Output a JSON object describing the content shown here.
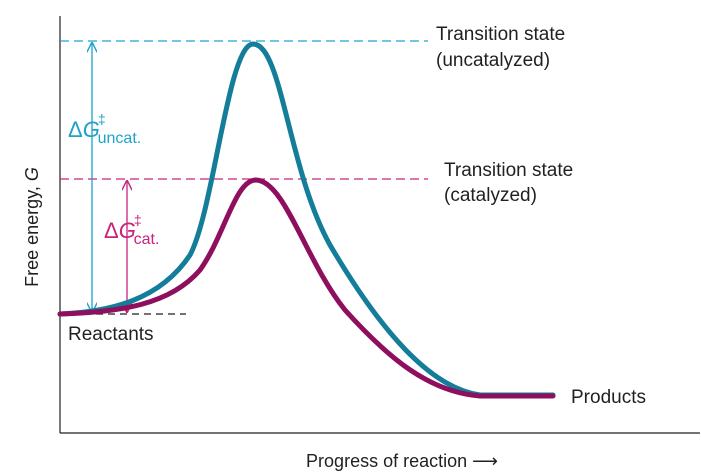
{
  "colors": {
    "uncatalyzed": "#137d9a",
    "uncatalyzed_label": "#1fa3c9",
    "catalyzed": "#8e0f5e",
    "catalyzed_label": "#c8247e",
    "axis": "#231f20"
  },
  "axes": {
    "y_label_main": "Free energy, ",
    "y_label_var": "G",
    "x_label": "Progress of reaction ⟶"
  },
  "labels": {
    "ts_uncat_line1": "Transition state",
    "ts_uncat_line2": "(uncatalyzed)",
    "ts_cat_line1": "Transition state",
    "ts_cat_line2": "(catalyzed)",
    "reactants": "Reactants",
    "products": "Products",
    "dg_uncat_delta": "Δ",
    "dg_uncat_var": "G",
    "dg_uncat_sup": "‡",
    "dg_uncat_sub": "uncat.",
    "dg_cat_delta": "Δ",
    "dg_cat_var": "G",
    "dg_cat_sup": "‡",
    "dg_cat_sub": "cat."
  }
}
